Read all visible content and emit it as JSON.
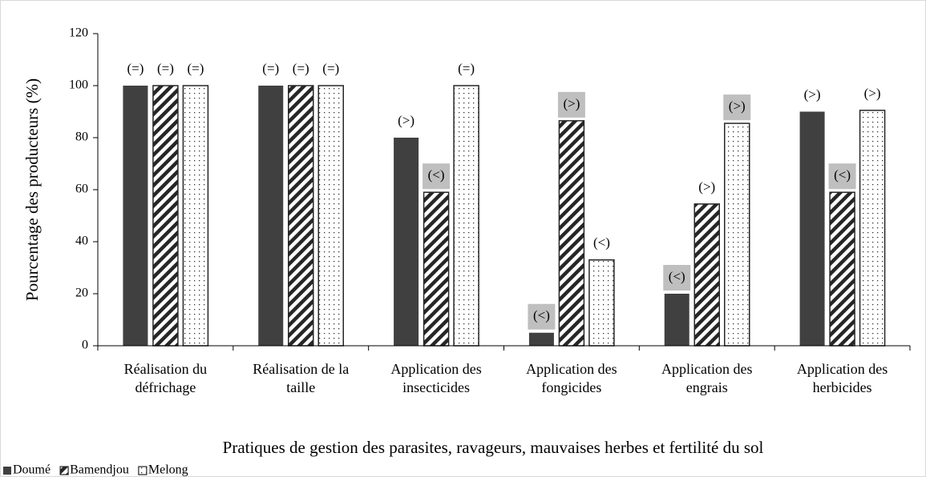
{
  "chart_data": {
    "type": "bar",
    "y_label": "Pourcentage des producteurs (%)",
    "x_label": "Pratiques de gestion des parasites, ravageurs, mauvaises herbes et fertilité du sol",
    "categories": [
      [
        "Réalisation du",
        "défrichage"
      ],
      [
        "Réalisation de la",
        "taille"
      ],
      [
        "Application des",
        "insecticides"
      ],
      [
        "Application des",
        "fongicides"
      ],
      [
        "Application des",
        "engrais"
      ],
      [
        "Application des",
        "herbicides"
      ]
    ],
    "series": [
      {
        "name": "Doumé",
        "color": "#404040",
        "pattern": "solid",
        "values": [
          100,
          100,
          80,
          5,
          20,
          90
        ],
        "value_labels": [
          "(=)",
          "(=)",
          "(>)",
          "(<)",
          "(<)",
          "(>)"
        ],
        "label_highlight": [
          false,
          false,
          false,
          true,
          true,
          false
        ]
      },
      {
        "name": "Bamendjou",
        "color": "#262626",
        "pattern": "hatch",
        "values": [
          100,
          100,
          59,
          86.5,
          54.5,
          59
        ],
        "value_labels": [
          "(=)",
          "(=)",
          "(<)",
          "(>)",
          "(>)",
          "(<)"
        ],
        "label_highlight": [
          false,
          false,
          true,
          true,
          false,
          true
        ]
      },
      {
        "name": "Melong",
        "color": "#262626",
        "pattern": "dots",
        "values": [
          100,
          100,
          100,
          33,
          85.5,
          90.5
        ],
        "value_labels": [
          "(=)",
          "(=)",
          "(=)",
          "(<)",
          "(>)",
          "(>)"
        ],
        "label_highlight": [
          false,
          false,
          false,
          false,
          true,
          false
        ]
      }
    ],
    "highlight_color": "#bfbfbf",
    "ylim": [
      0,
      120
    ],
    "yticks": [
      0,
      20,
      40,
      60,
      80,
      100,
      120
    ],
    "grid": false,
    "legend": "bottom-left"
  }
}
